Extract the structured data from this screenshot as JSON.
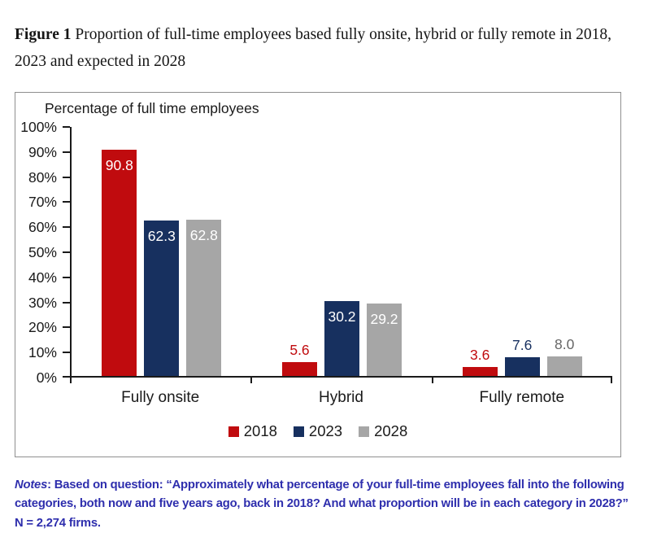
{
  "figure": {
    "label": "Figure 1",
    "title": " Proportion of full-time employees based fully onsite, hybrid or fully remote in 2018, 2023 and expected in 2028"
  },
  "chart_data": {
    "type": "bar",
    "title": "Percentage of full time employees",
    "categories": [
      "Fully onsite",
      "Hybrid",
      "Fully remote"
    ],
    "series": [
      {
        "name": "2018",
        "color": "#c00b0e",
        "outside_label_color": "#c00b0e",
        "values": [
          90.8,
          5.6,
          3.6
        ]
      },
      {
        "name": "2023",
        "color": "#17305f",
        "outside_label_color": "#17305f",
        "values": [
          62.3,
          30.2,
          7.6
        ]
      },
      {
        "name": "2028",
        "color": "#a6a6a6",
        "outside_label_color": "#666666",
        "values": [
          62.8,
          29.2,
          8.0
        ]
      }
    ],
    "xlabel": "",
    "ylabel": "",
    "ylim": [
      0,
      100
    ],
    "y_tick_labels": [
      "100%",
      "90%",
      "80%",
      "70%",
      "60%",
      "50%",
      "40%",
      "30%",
      "20%",
      "10%",
      "0%"
    ],
    "grid": false,
    "legend_position": "bottom",
    "inside_label_threshold": 20,
    "inside_label_color": "#ffffff",
    "axis_color": "#1a1a1a"
  },
  "notes": {
    "label": "Notes",
    "text": ": Based on question: “Approximately what percentage of your full-time employees fall into the following categories, both now and five years ago, back in 2018? And what proportion will be in each category in 2028?” N = 2,274 firms."
  }
}
